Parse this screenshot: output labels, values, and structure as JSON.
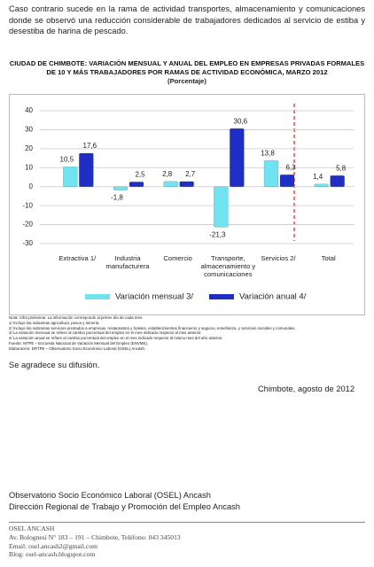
{
  "intro": "Caso contrario sucede en la rama de actividad transportes, almacenamiento y comunicaciones donde se observó una reducción considerable de trabajadores dedicados al servicio de estiba y desestiba de harina de pescado.",
  "chart_data": {
    "type": "bar",
    "title": "CIUDAD DE CHIMBOTE: VARIACIÓN MENSUAL Y ANUAL DEL EMPLEO EN EMPRESAS PRIVADAS FORMALES DE 10 Y MÁS TRABAJADORES POR RAMAS DE ACTIVIDAD ECONÓMICA, MARZO 2012",
    "subtitle": "(Porcentaje)",
    "categories": [
      "Extractiva 1/",
      "Industria manufacturera",
      "Comercio",
      "Transporte, almacenamiento y comunicaciones",
      "Servicios 2/",
      "Total"
    ],
    "series": [
      {
        "name": "Variación mensual  3/",
        "color": "#6fe3f0",
        "values": [
          10.5,
          -1.8,
          2.8,
          -21.3,
          13.8,
          1.4
        ],
        "value_labels": [
          "10,5",
          "-1,8",
          "2,8",
          "-21,3",
          "13,8",
          "1,4"
        ]
      },
      {
        "name": "Variación anual  4/",
        "color": "#1f2fc4",
        "values": [
          17.6,
          2.5,
          2.7,
          30.6,
          6.3,
          5.8
        ],
        "value_labels": [
          "17,6",
          "2,5",
          "2,7",
          "30,6",
          "6,3",
          "5,8"
        ]
      }
    ],
    "ylim": [
      -30,
      40
    ],
    "yticks": [
      40,
      30,
      20,
      10,
      0,
      -10,
      -20,
      -30
    ],
    "grid": true
  },
  "notes": [
    "Nota: Cifra preliminar. La información corresponde al primer día de cada mes.",
    "1/ Incluye las subramas agricultura, pesca y minería.",
    "2/ Incluye las subramas servicios prestados a empresas, restaurantes y hoteles, establecimientos financieros y seguros, enseñanza, y servicios sociales y comunales.",
    "3/ La variación mensual se refiere al cambio porcentual del empleo en el mes indicado respecto al mes anterior.",
    "4/ La variación anual se refiere al cambio porcentual del empleo en el mes indicado respecto al mismo mes del año anterior.",
    "Fuente: MTPE – Encuesta Nacional de Variación Mensual del Empleo (ENVME).",
    "Elaboración: DRTPE – Observatorio Socio Económico Laboral (OSEL) Ancash."
  ],
  "thanks": "Se agradece su difusión.",
  "date": "Chimbote, agosto de 2012",
  "footer": {
    "org1": "Observatorio Socio Económico Laboral (OSEL) Ancash",
    "org2": "Dirección Regional de Trabajo y Promoción del Empleo Ancash",
    "name": "OSEL ANCASH",
    "address": "Av. Bolognesi N° 183 – 191 – Chimbote, Teléfono: 043 345013",
    "email": "Email: osel.ancash2@gmail.com",
    "blog": "Blog: osel-ancash.blogspot.com"
  }
}
